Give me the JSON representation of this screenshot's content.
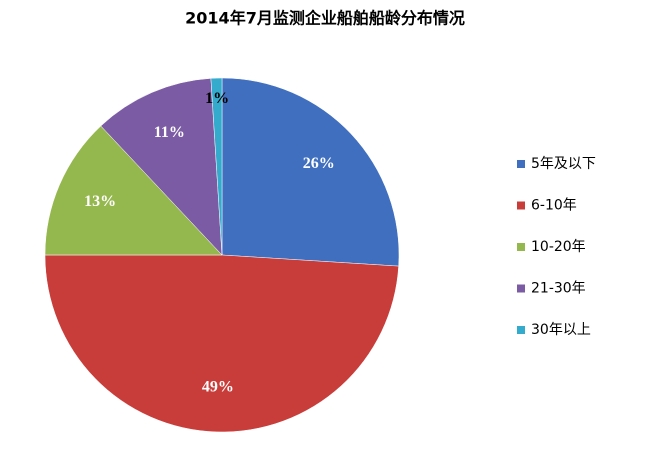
{
  "chart_data": {
    "type": "pie",
    "title": "2014年7月监测企业船舶船龄分布情况",
    "categories": [
      "5年及以下",
      "6-10年",
      "10-20年",
      "21-30年",
      "30年以上"
    ],
    "values": [
      26,
      49,
      13,
      11,
      1
    ],
    "value_labels": [
      "26%",
      "49%",
      "13%",
      "11%",
      "1%"
    ],
    "colors": [
      "#3f6fbe",
      "#c83d3a",
      "#95b84e",
      "#7b5ba3",
      "#34aacc"
    ],
    "legend": "right"
  }
}
